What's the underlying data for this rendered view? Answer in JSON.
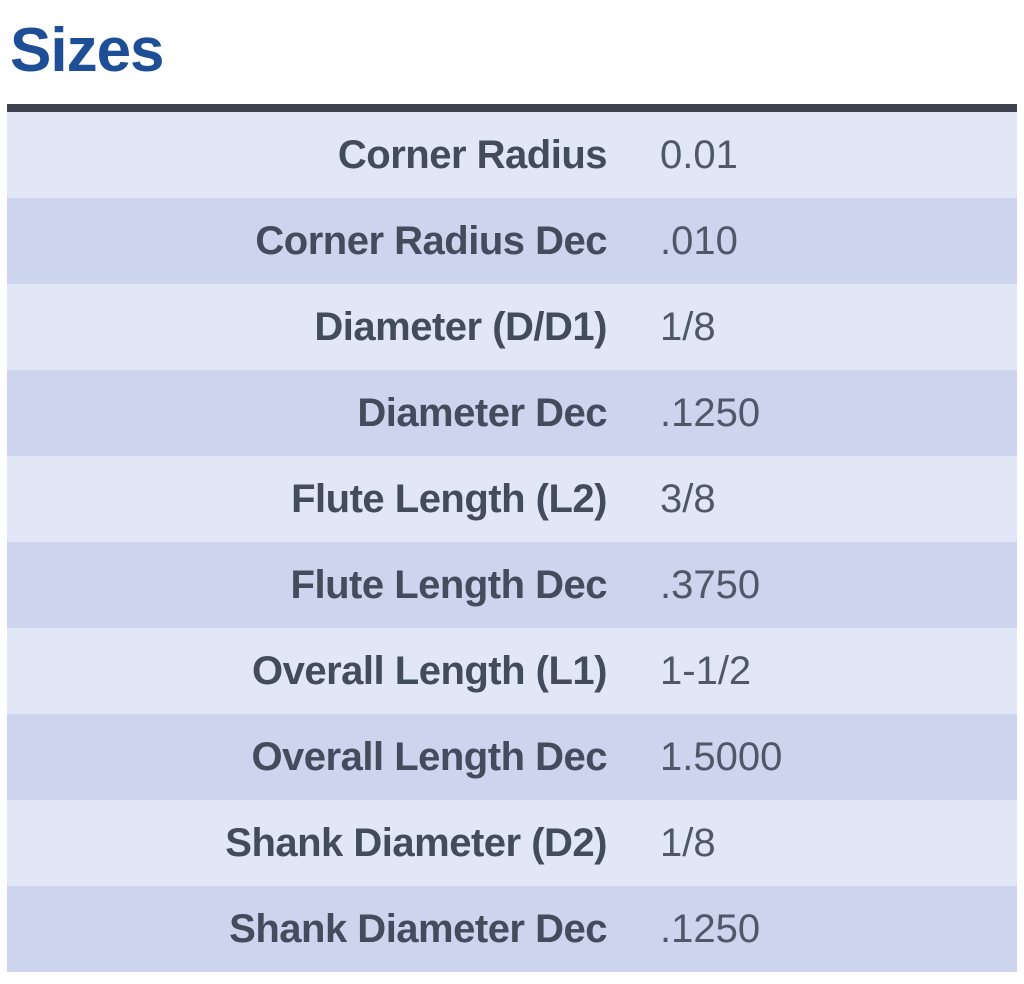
{
  "page": {
    "title": "Sizes"
  },
  "colors": {
    "title": "#1d4e96",
    "border": "#3d4450",
    "row_light": "#e1e7f7",
    "row_dark": "#ccd4ee",
    "label_text": "#424c5c",
    "value_text": "#4e5869"
  },
  "sizes_table": {
    "rows": [
      {
        "label": "Corner Radius",
        "value": "0.01"
      },
      {
        "label": "Corner Radius Dec",
        "value": ".010"
      },
      {
        "label": "Diameter (D/D1)",
        "value": "1/8"
      },
      {
        "label": "Diameter Dec",
        "value": ".1250"
      },
      {
        "label": "Flute Length (L2)",
        "value": "3/8"
      },
      {
        "label": "Flute Length Dec",
        "value": ".3750"
      },
      {
        "label": "Overall Length (L1)",
        "value": "1-1/2"
      },
      {
        "label": "Overall Length Dec",
        "value": "1.5000"
      },
      {
        "label": "Shank Diameter (D2)",
        "value": "1/8"
      },
      {
        "label": "Shank Diameter Dec",
        "value": ".1250"
      }
    ]
  }
}
